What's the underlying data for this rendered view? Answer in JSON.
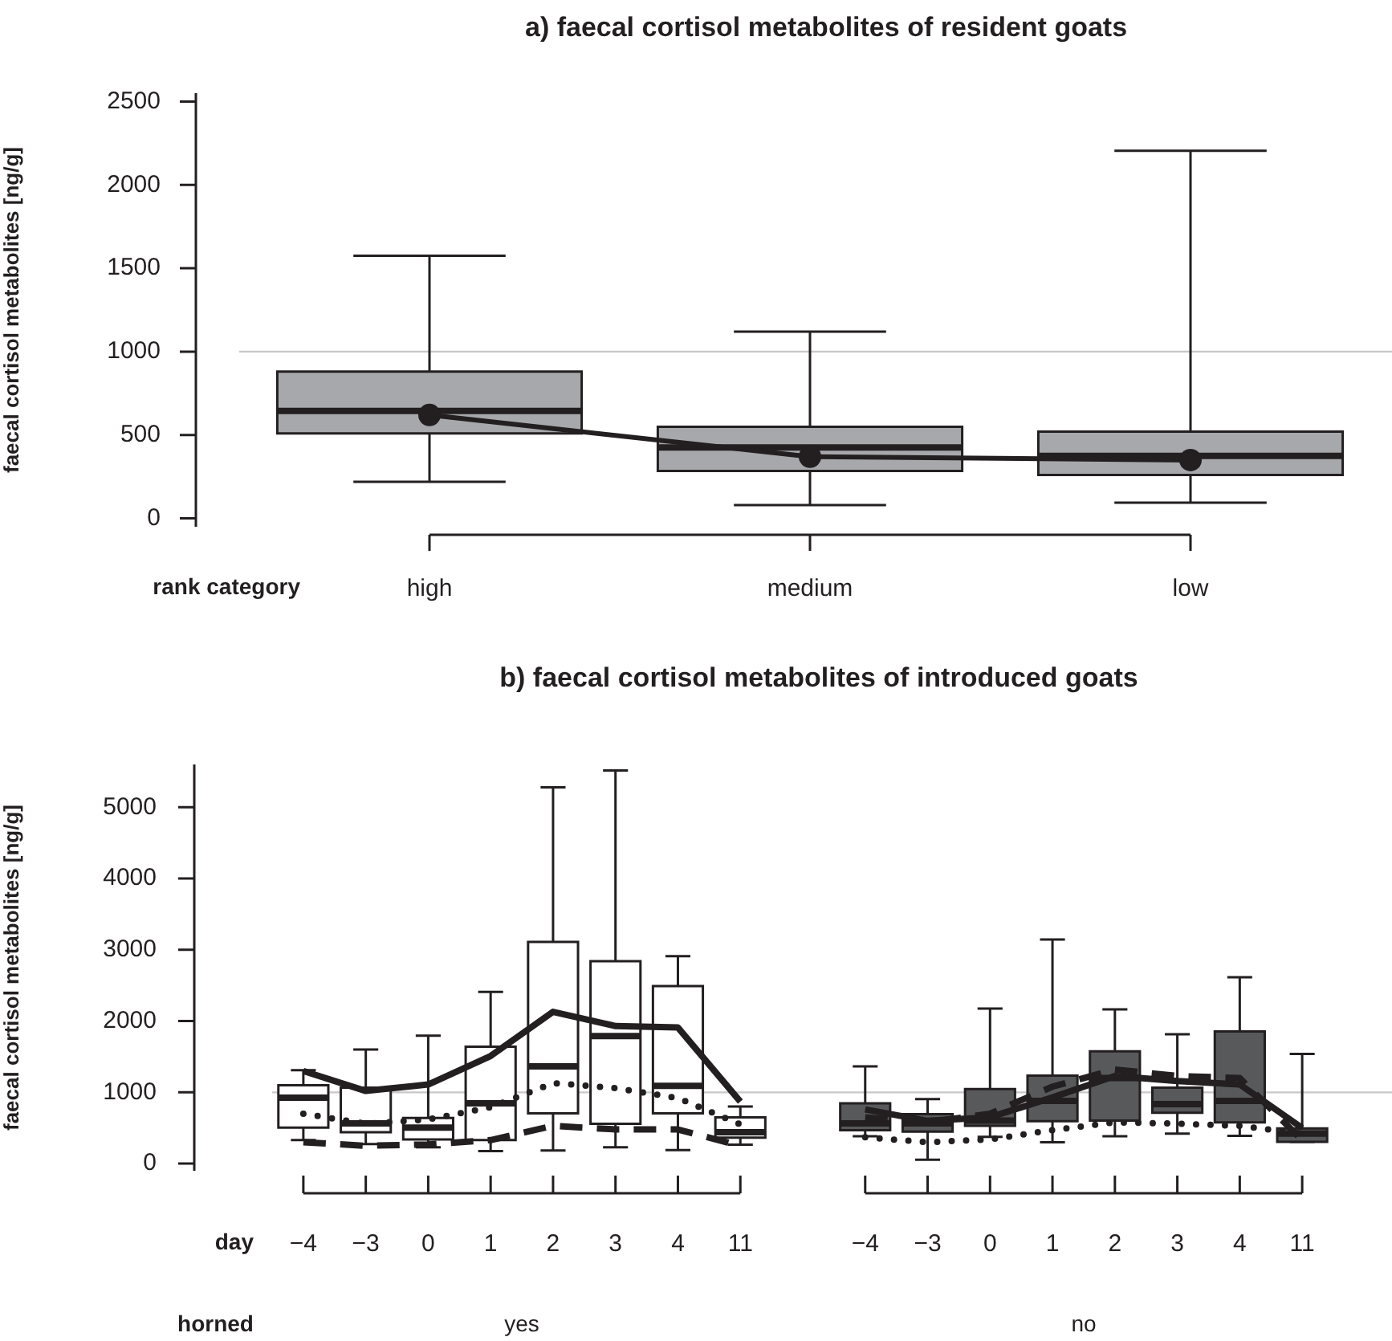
{
  "chart_data": [
    {
      "type": "box",
      "title": "a) faecal cortisol metabolites of resident goats",
      "ylabel": "faecal cortisol metabolites [ng/g]",
      "xlabel": "rank category",
      "categories": [
        "high",
        "medium",
        "low"
      ],
      "series": [
        {
          "type": "box",
          "color": "#a7a8ab",
          "boxes": [
            {
              "low": 220,
              "q1": 510,
              "median": 645,
              "q3": 880,
              "high": 1575
            },
            {
              "low": 80,
              "q1": 285,
              "median": 425,
              "q3": 550,
              "high": 1120
            },
            {
              "low": 95,
              "q1": 260,
              "median": 375,
              "q3": 520,
              "high": 2205
            }
          ]
        },
        {
          "type": "line",
          "color": "#231f20",
          "marker": "circle",
          "values": [
            620,
            370,
            350
          ]
        }
      ],
      "ylim": [
        -50,
        2550
      ],
      "yticks": [
        0,
        500,
        1000,
        1500,
        2000,
        2500
      ],
      "ref_lines": [
        {
          "axis": "y",
          "value": 1000,
          "color": "#c8c8c8"
        }
      ],
      "legend": false
    },
    {
      "type": "box",
      "title": "b) faecal cortisol metabolites of introduced goats",
      "ylabel": "faecal cortisol metabolites [ng/g]",
      "xlabel": "day",
      "categories": [
        "−4",
        "−3",
        "0",
        "1",
        "2",
        "3",
        "4",
        "11",
        null,
        "−4",
        "−3",
        "0",
        "1",
        "2",
        "3",
        "4",
        "11"
      ],
      "series": [
        {
          "type": "box",
          "color": "#ffffff",
          "boxes": [
            {
              "low": 330,
              "q1": 505,
              "median": 925,
              "q3": 1100,
              "high": 1310
            },
            {
              "low": 275,
              "q1": 440,
              "median": 565,
              "q3": 1065,
              "high": 1600
            },
            {
              "low": 230,
              "q1": 340,
              "median": 505,
              "q3": 640,
              "high": 1795
            },
            {
              "low": 175,
              "q1": 330,
              "median": 845,
              "q3": 1640,
              "high": 2410
            },
            {
              "low": 185,
              "q1": 705,
              "median": 1365,
              "q3": 3110,
              "high": 5280
            },
            {
              "low": 230,
              "q1": 560,
              "median": 1790,
              "q3": 2840,
              "high": 5515
            },
            {
              "low": 190,
              "q1": 705,
              "median": 1090,
              "q3": 2490,
              "high": 2910
            },
            {
              "low": 265,
              "q1": 365,
              "median": 440,
              "q3": 650,
              "high": 800
            },
            null,
            null,
            null,
            null,
            null,
            null,
            null,
            null,
            null
          ]
        },
        {
          "type": "box",
          "color": "#58595b",
          "boxes": [
            null,
            null,
            null,
            null,
            null,
            null,
            null,
            null,
            null,
            {
              "low": 385,
              "q1": 470,
              "median": 565,
              "q3": 845,
              "high": 1365
            },
            {
              "low": 55,
              "q1": 450,
              "median": 565,
              "q3": 695,
              "high": 905
            },
            {
              "low": 375,
              "q1": 530,
              "median": 605,
              "q3": 1045,
              "high": 2175
            },
            {
              "low": 300,
              "q1": 595,
              "median": 880,
              "q3": 1235,
              "high": 3145
            },
            {
              "low": 385,
              "q1": 605,
              "median": 1200,
              "q3": 1575,
              "high": 2165
            },
            {
              "low": 420,
              "q1": 715,
              "median": 835,
              "q3": 1065,
              "high": 1815
            },
            {
              "low": 390,
              "q1": 580,
              "median": 880,
              "q3": 1855,
              "high": 2615
            },
            {
              "low": 305,
              "q1": 305,
              "median": 420,
              "q3": 495,
              "high": 1540
            }
          ]
        },
        {
          "type": "line",
          "color": "#231f20",
          "line_style": "solid",
          "values": [
            1300,
            1020,
            1110,
            1510,
            2130,
            1930,
            1910,
            870,
            null,
            760,
            600,
            650,
            930,
            1230,
            1160,
            1110,
            500
          ]
        },
        {
          "type": "line",
          "color": "#231f20",
          "line_style": "dashed",
          "values": [
            300,
            250,
            270,
            330,
            530,
            480,
            480,
            250,
            null,
            650,
            580,
            700,
            1080,
            1320,
            1230,
            1200,
            330
          ]
        },
        {
          "type": "line",
          "color": "#231f20",
          "line_style": "dotted",
          "values": [
            700,
            560,
            620,
            790,
            1130,
            1060,
            920,
            550,
            null,
            370,
            300,
            340,
            470,
            580,
            560,
            530,
            420
          ]
        }
      ],
      "ylim": [
        -100,
        5600
      ],
      "yticks": [
        0,
        1000,
        2000,
        3000,
        4000,
        5000
      ],
      "ref_lines": [
        {
          "axis": "y",
          "value": 1000,
          "color": "#c8c8c8"
        }
      ],
      "legend": false,
      "annotations": [
        "horned",
        "yes",
        "no"
      ]
    }
  ]
}
